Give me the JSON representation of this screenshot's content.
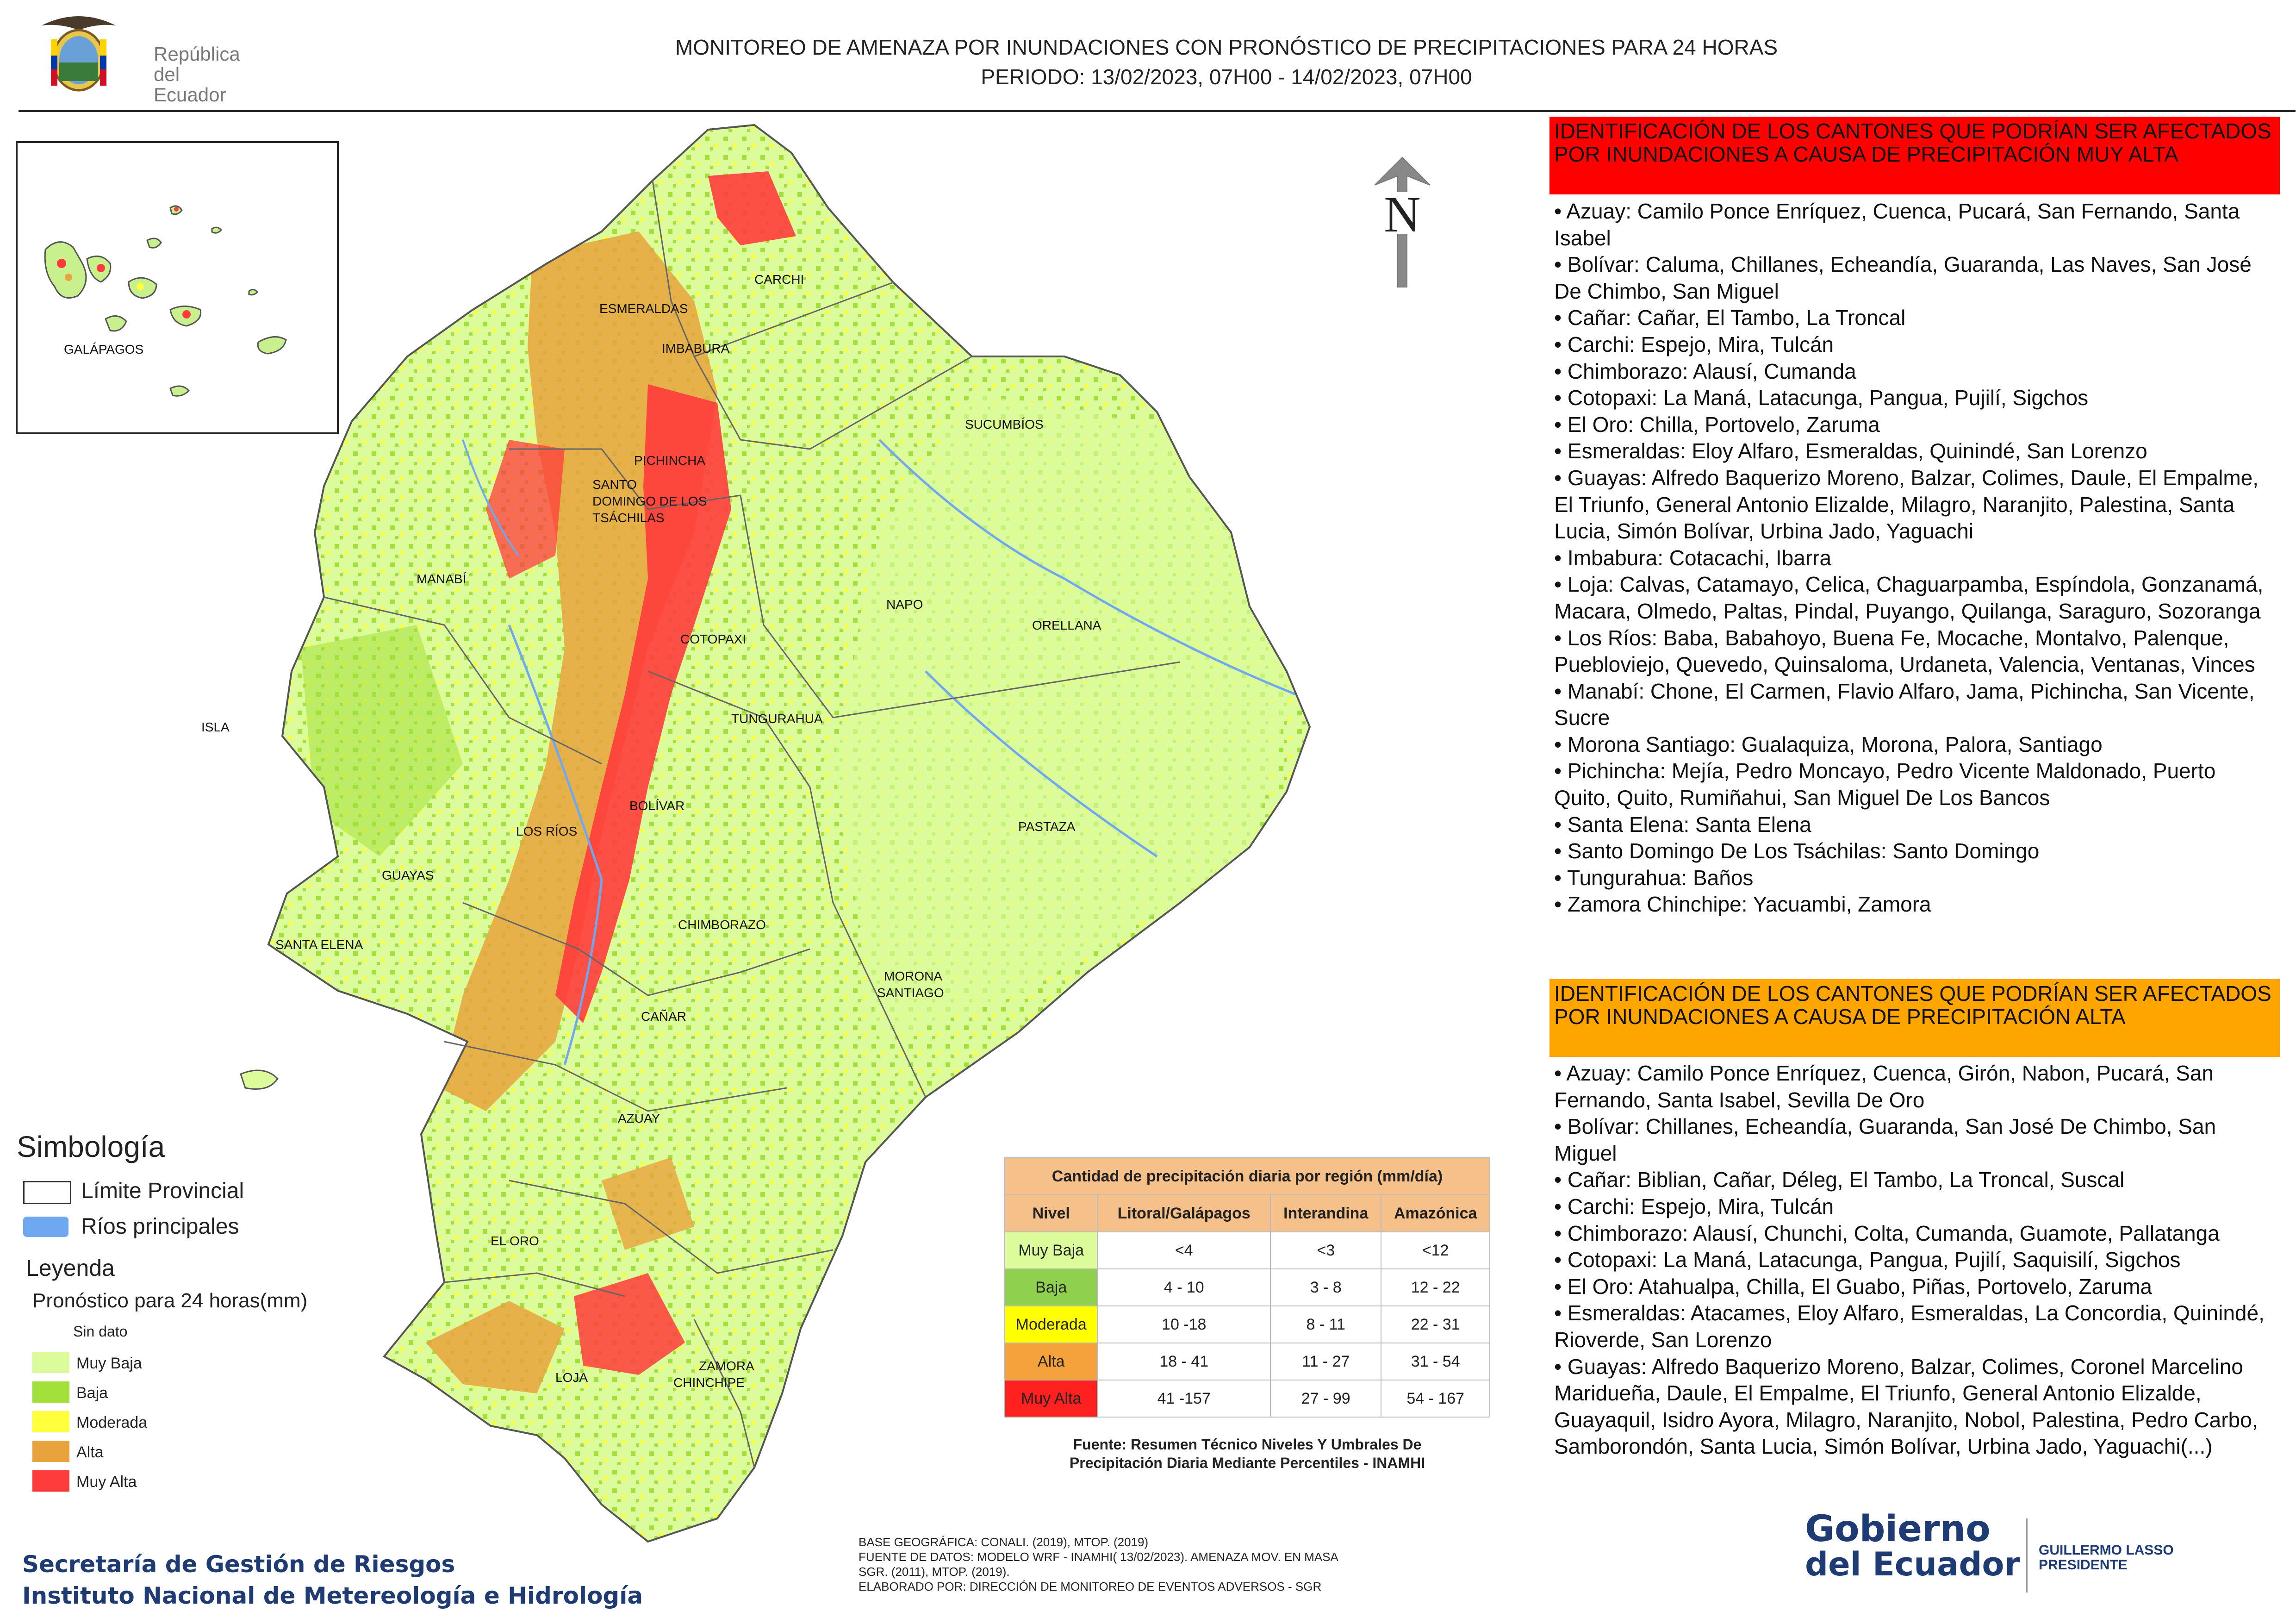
{
  "header": {
    "logo_text_line1": "República",
    "logo_text_line2": "del Ecuador",
    "title_line1": "MONITOREO DE AMENAZA POR INUNDACIONES  CON PRONÓSTICO DE  PRECIPITACIONES PARA 24 HORAS",
    "title_line2": "PERIODO: 13/02/2023, 07H00 - 14/02/2023, 07H00"
  },
  "map": {
    "north_label": "N",
    "inset_label": "GALÁPAGOS",
    "province_labels": [
      "CARCHI",
      "ESMERALDAS",
      "IMBABURA",
      "SUCUMBÍOS",
      "PICHINCHA",
      "SANTO",
      "DOMINGO DE LOS",
      "TSÁCHILAS",
      "MANABÍ",
      "NAPO",
      "ORELLANA",
      "COTOPAXI",
      "ISLA",
      "TUNGURAHUA",
      "BOLÍVAR",
      "LOS RÍOS",
      "PASTAZA",
      "GUAYAS",
      "CHIMBORAZO",
      "SANTA ELENA",
      "MORONA",
      "SANTIAGO",
      "CAÑAR",
      "AZUAY",
      "EL ORO",
      "LOJA",
      "ZAMORA",
      "CHINCHIPE"
    ]
  },
  "simbologia": {
    "title": "Simbología",
    "items": [
      {
        "label": "Límite Provincial",
        "color": "#ffffff",
        "border": "#333333"
      },
      {
        "label": "Ríos principales",
        "color": "#6fa8f0",
        "border": "#6fa8f0"
      }
    ]
  },
  "leyenda": {
    "title": "Leyenda",
    "subtitle": "Pronóstico para 24 horas(mm)",
    "items": [
      {
        "label": "Sin dato",
        "color": "#ffffff"
      },
      {
        "label": "Muy Baja",
        "color": "#dcfc9c"
      },
      {
        "label": "Baja",
        "color": "#a4e03c"
      },
      {
        "label": "Moderada",
        "color": "#ffff3c"
      },
      {
        "label": "Alta",
        "color": "#e8a33c"
      },
      {
        "label": "Muy Alta",
        "color": "#ff3c3c"
      }
    ]
  },
  "precip_table": {
    "title": "Cantidad de precipitación diaria por región (mm/día)",
    "headers": [
      "Nivel",
      "Litoral/Galápagos",
      "Interandina",
      "Amazónica"
    ],
    "rows": [
      {
        "nivel": "Muy Baja",
        "color": "#dcfc9c",
        "litoral": "<4",
        "interandina": "<3",
        "amazonica": "<12"
      },
      {
        "nivel": "Baja",
        "color": "#8fd14f",
        "litoral": "4 - 10",
        "interandina": "3 - 8",
        "amazonica": "12 - 22"
      },
      {
        "nivel": "Moderada",
        "color": "#ffff00",
        "litoral": "10 -18",
        "interandina": "8 - 11",
        "amazonica": "22 - 31"
      },
      {
        "nivel": "Alta",
        "color": "#f5a23c",
        "litoral": "18 - 41",
        "interandina": "11 - 27",
        "amazonica": "31 - 54"
      },
      {
        "nivel": "Muy Alta",
        "color": "#ff2020",
        "litoral": "41 -157",
        "interandina": "27 - 99",
        "amazonica": "54 - 167"
      }
    ],
    "source_line1": "Fuente: Resumen Técnico Niveles Y Umbrales De",
    "source_line2": "Precipitación Diaria Mediante Percentiles - INAMHI"
  },
  "panel_muy_alta": {
    "heading": "IDENTIFICACIÓN DE LOS CANTONES QUE PODRÍAN SER AFECTADOS POR INUNDACIONES  A CAUSA DE PRECIPITACIÓN MUY ALTA",
    "items": [
      "• Azuay: Camilo Ponce Enríquez, Cuenca, Pucará, San Fernando, Santa Isabel",
      "• Bolívar: Caluma, Chillanes, Echeandía, Guaranda, Las Naves, San José De Chimbo, San Miguel",
      "• Cañar: Cañar, El Tambo, La Troncal",
      "• Carchi: Espejo, Mira, Tulcán",
      "• Chimborazo: Alausí, Cumanda",
      "• Cotopaxi: La Maná, Latacunga, Pangua, Pujilí, Sigchos",
      "• El Oro: Chilla, Portovelo, Zaruma",
      "• Esmeraldas: Eloy Alfaro, Esmeraldas, Quinindé, San Lorenzo",
      "• Guayas: Alfredo Baquerizo Moreno, Balzar, Colimes, Daule, El Empalme, El Triunfo, General Antonio Elizalde, Milagro, Naranjito, Palestina, Santa Lucia, Simón Bolívar, Urbina Jado, Yaguachi",
      "• Imbabura: Cotacachi, Ibarra",
      "• Loja: Calvas, Catamayo, Celica, Chaguarpamba, Espíndola, Gonzanamá, Macara, Olmedo, Paltas, Pindal, Puyango, Quilanga, Saraguro, Sozoranga",
      "• Los Ríos: Baba, Babahoyo, Buena Fe, Mocache, Montalvo, Palenque, Puebloviejo, Quevedo, Quinsaloma, Urdaneta, Valencia, Ventanas, Vinces",
      "• Manabí: Chone, El Carmen, Flavio Alfaro, Jama, Pichincha, San Vicente, Sucre",
      "• Morona Santiago: Gualaquiza, Morona, Palora, Santiago",
      "• Pichincha: Mejía, Pedro Moncayo, Pedro Vicente Maldonado, Puerto Quito, Quito, Rumiñahui, San Miguel De Los Bancos",
      "• Santa Elena: Santa Elena",
      "• Santo Domingo De Los Tsáchilas: Santo Domingo",
      "• Tungurahua: Baños",
      "• Zamora Chinchipe: Yacuambi, Zamora"
    ]
  },
  "panel_alta": {
    "heading": "IDENTIFICACIÓN DE LOS CANTONES QUE  PODRÍAN SER AFECTADOS POR INUNDACIONES  A CAUSA DE PRECIPITACIÓN ALTA",
    "items": [
      "• Azuay: Camilo Ponce Enríquez, Cuenca, Girón, Nabon, Pucará, San Fernando, Santa Isabel, Sevilla De Oro",
      "• Bolívar: Chillanes, Echeandía, Guaranda, San José De Chimbo, San Miguel",
      "• Cañar: Biblian, Cañar, Déleg, El Tambo, La Troncal, Suscal",
      "• Carchi: Espejo, Mira, Tulcán",
      "• Chimborazo: Alausí, Chunchi, Colta, Cumanda, Guamote, Pallatanga",
      "• Cotopaxi: La Maná, Latacunga, Pangua, Pujilí, Saquisilí, Sigchos",
      "• El Oro: Atahualpa, Chilla, El Guabo, Piñas, Portovelo, Zaruma",
      "• Esmeraldas: Atacames, Eloy Alfaro, Esmeraldas, La Concordia, Quinindé, Rioverde, San Lorenzo",
      "• Guayas: Alfredo Baquerizo Moreno, Balzar, Colimes, Coronel Marcelino Maridueña, Daule, El Empalme, El Triunfo, General Antonio Elizalde, Guayaquil, Isidro Ayora, Milagro, Naranjito, Nobol, Palestina, Pedro Carbo, Samborondón, Santa Lucia, Simón Bolívar, Urbina Jado, Yaguachi(...)"
    ]
  },
  "footer": {
    "org_line1": "Secretaría de Gestión de Riesgos",
    "org_line2": "Instituto Nacional de Metereología e Hidrología",
    "credit_line1": "BASE GEOGRÁFICA: CONALI. (2019), MTOP. (2019)",
    "credit_line2": "FUENTE DE DATOS: MODELO WRF - INAMHI( 13/02/2023).  AMENAZA MOV. EN MASA",
    "credit_line3": "SGR. (2011), MTOP. (2019).",
    "credit_line4": "ELABORADO POR: DIRECCIÓN DE MONITOREO DE EVENTOS ADVERSOS - SGR",
    "gov_logo_line1": "Gobierno",
    "gov_logo_line2": "del Ecuador",
    "gov_person": "GUILLERMO LASSO",
    "gov_role": "PRESIDENTE"
  }
}
